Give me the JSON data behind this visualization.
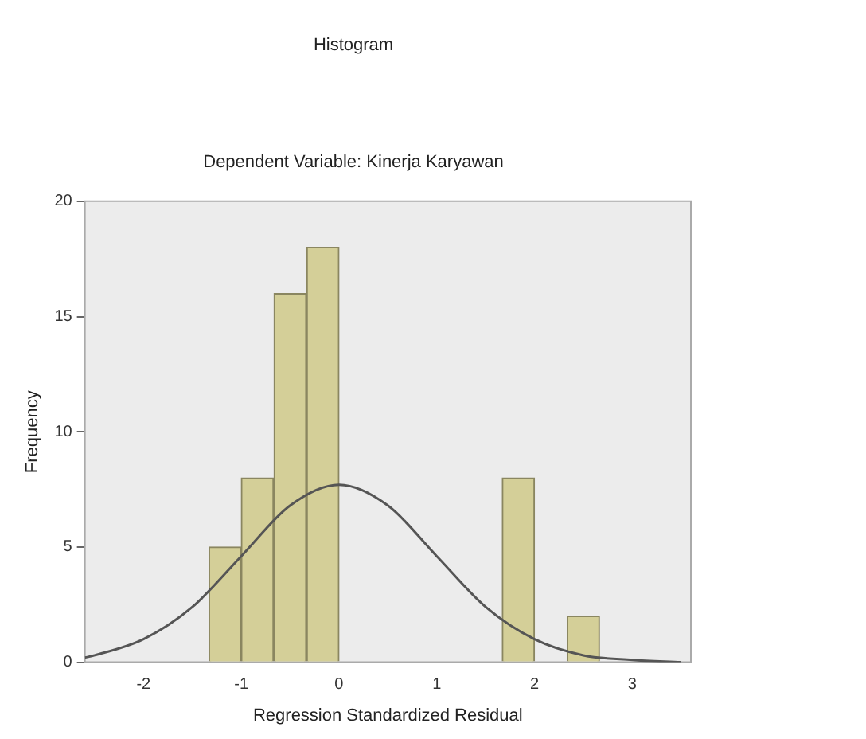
{
  "chart_data": {
    "type": "histogram",
    "title": "Histogram",
    "subtitle": "Dependent Variable: Kinerja Karyawan",
    "xlabel": "Regression Standardized Residual",
    "ylabel": "Frequency",
    "bins": [
      -1.33,
      -1,
      -0.67,
      -0.33,
      0,
      0.33,
      0.67,
      1,
      1.33,
      1.67,
      2,
      2.33,
      2.67
    ],
    "values": [
      5,
      8,
      16,
      18,
      0,
      0,
      0,
      0,
      0,
      8,
      0,
      2
    ],
    "color": "#d4cf98",
    "series": [
      {
        "type": "line",
        "color": "#555555",
        "x": [
          -2.6,
          -2.5,
          -2,
          -1.5,
          -1,
          -0.5,
          0,
          0.5,
          1,
          1.5,
          2,
          2.5,
          3,
          3.5
        ],
        "values": [
          0.2,
          0.3,
          1.0,
          2.4,
          4.6,
          6.8,
          7.7,
          6.8,
          4.6,
          2.4,
          1.0,
          0.3,
          0.1,
          0
        ]
      }
    ],
    "xlim": [
      -2.6,
      3.6
    ],
    "xticks": [
      -2,
      -1,
      0,
      1,
      2,
      3
    ],
    "ylim": [
      0,
      20
    ],
    "yticks": [
      0,
      5,
      10,
      15,
      20
    ],
    "grid": false,
    "legend": false
  }
}
